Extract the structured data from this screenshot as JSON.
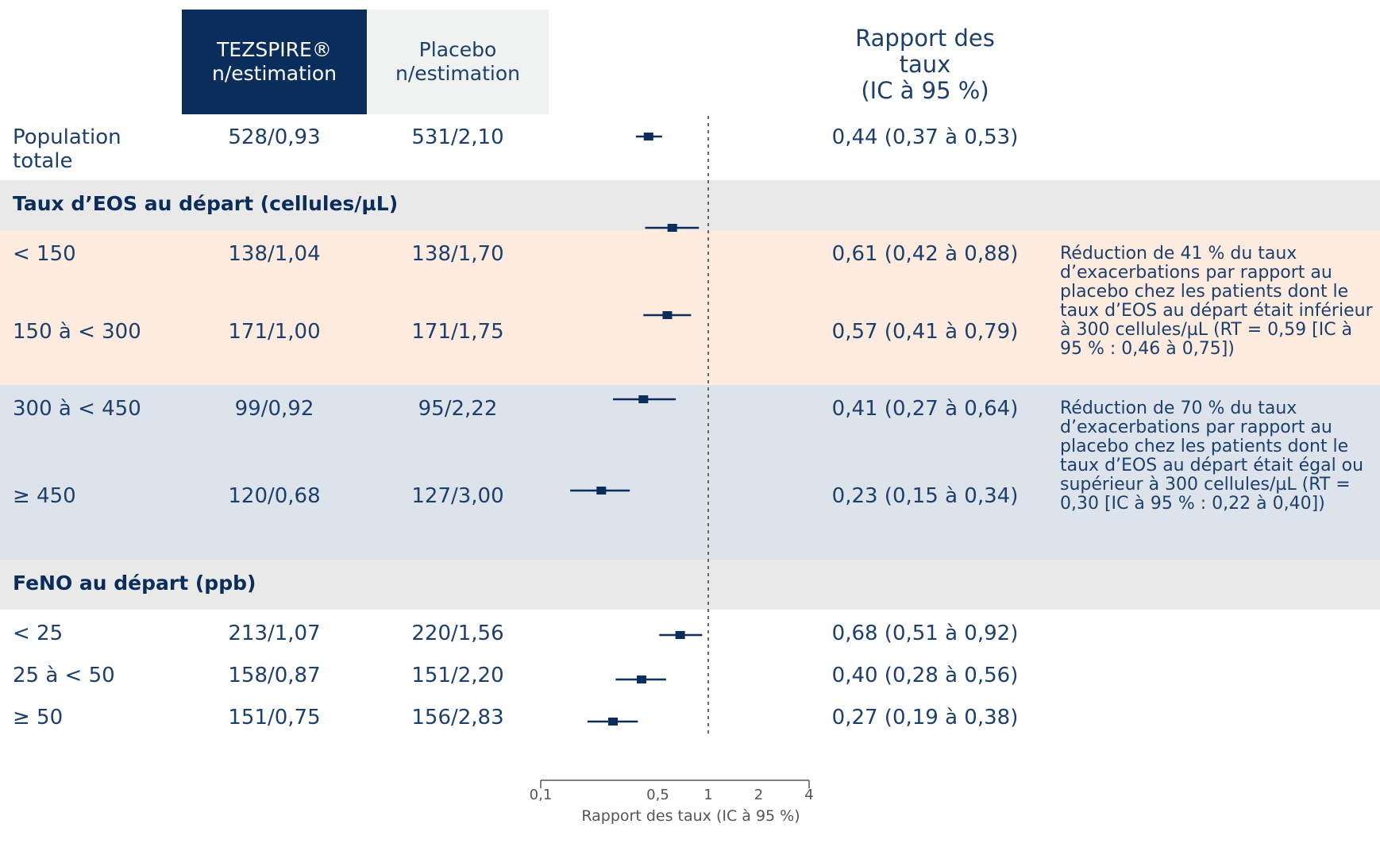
{
  "header": {
    "tezspire_line1": "TEZSPIRE®",
    "tezspire_line2": "n/estimation",
    "placebo_line1": "Placebo",
    "placebo_line2": "n/estimation",
    "rate_ratio_line1": "Rapport des",
    "rate_ratio_line2": "taux",
    "rate_ratio_line3": "(IC à 95 %)"
  },
  "sections": {
    "eos": "Taux d’EOS au départ (cellules/µL)",
    "feno": "FeNO au départ (ppb)"
  },
  "notes": {
    "eos_low": "Réduction de 41 % du taux d’exacerbations par rapport au placebo chez les patients dont le taux d’EOS au départ était inférieur à 300 cellules/µL (RT = 0,59 [IC à 95 % : 0,46 à 0,75])",
    "eos_high": "Réduction de 70 % du taux d’exacerbations par rapport au placebo chez les patients dont le taux d’EOS au départ était égal ou supérieur à 300 cellules/µL (RT = 0,30 [IC à 95 % : 0,22 à 0,40])"
  },
  "chart_data": {
    "type": "forest",
    "xlabel": "Rapport des taux (IC à 95 %)",
    "xscale": "log",
    "xlim": [
      0.1,
      4
    ],
    "xticks": [
      0.1,
      0.5,
      1,
      2,
      4
    ],
    "xtick_labels": [
      "0,1",
      "0,5",
      "1",
      "2",
      "4"
    ],
    "reference_line": 1,
    "colors": {
      "marker": "#0b2d5b",
      "reference": "#666666"
    },
    "rows": [
      {
        "label": "Population totale",
        "label_line1": "Population",
        "label_line2": "totale",
        "tezspire": "528/0,93",
        "placebo": "531/2,10",
        "rr_text": "0,44 (0,37 à 0,53)",
        "rr": 0.44,
        "ci_low": 0.37,
        "ci_high": 0.53
      },
      {
        "label": "< 150",
        "tezspire": "138/1,04",
        "placebo": "138/1,70",
        "rr_text": "0,61 (0,42 à 0,88)",
        "rr": 0.61,
        "ci_low": 0.42,
        "ci_high": 0.88
      },
      {
        "label": "150 à < 300",
        "tezspire": "171/1,00",
        "placebo": "171/1,75",
        "rr_text": "0,57 (0,41 à 0,79)",
        "rr": 0.57,
        "ci_low": 0.41,
        "ci_high": 0.79
      },
      {
        "label": "300 à < 450",
        "tezspire": "99/0,92",
        "placebo": "95/2,22",
        "rr_text": "0,41 (0,27 à 0,64)",
        "rr": 0.41,
        "ci_low": 0.27,
        "ci_high": 0.64
      },
      {
        "label": "≥ 450",
        "tezspire": "120/0,68",
        "placebo": "127/3,00",
        "rr_text": "0,23 (0,15 à 0,34)",
        "rr": 0.23,
        "ci_low": 0.15,
        "ci_high": 0.34
      },
      {
        "label": "< 25",
        "tezspire": "213/1,07",
        "placebo": "220/1,56",
        "rr_text": "0,68 (0,51 à 0,92)",
        "rr": 0.68,
        "ci_low": 0.51,
        "ci_high": 0.92
      },
      {
        "label": "25 à < 50",
        "tezspire": "158/0,87",
        "placebo": "151/2,20",
        "rr_text": "0,40 (0,28 à 0,56)",
        "rr": 0.4,
        "ci_low": 0.28,
        "ci_high": 0.56
      },
      {
        "label": "≥ 50",
        "tezspire": "151/0,75",
        "placebo": "156/2,83",
        "rr_text": "0,27 (0,19 à 0,38)",
        "rr": 0.27,
        "ci_low": 0.19,
        "ci_high": 0.38
      }
    ]
  }
}
